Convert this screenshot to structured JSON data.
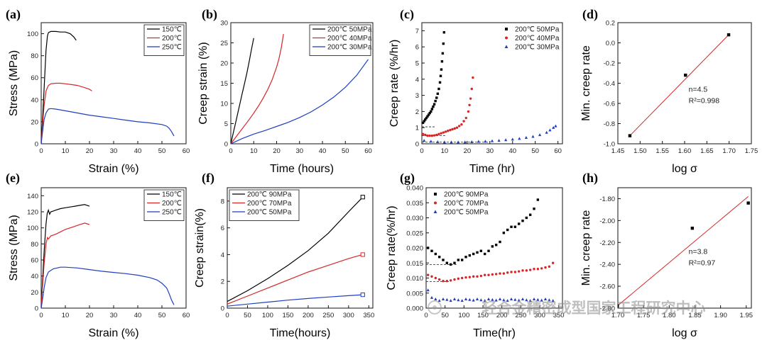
{
  "watermark": "轻合金精密成型国家工程研究中心",
  "chart_data": [
    {
      "id": "a",
      "panel_label": "(a)",
      "type": "line",
      "xlabel": "Strain (%)",
      "ylabel": "Stress (MPa)",
      "xlim": [
        0,
        60
      ],
      "ylim": [
        0,
        110
      ],
      "xticks": [
        0,
        10,
        20,
        30,
        40,
        50,
        60
      ],
      "yticks": [
        0,
        20,
        40,
        60,
        80,
        100
      ],
      "legend_position": "top-right",
      "series": [
        {
          "name": "150℃",
          "color": "#000000",
          "x": [
            0,
            0.5,
            1.2,
            2,
            2.6,
            3,
            4,
            6,
            8,
            10,
            12,
            13.5,
            14.5
          ],
          "y": [
            0,
            20,
            50,
            85,
            98,
            101,
            102,
            102,
            101.5,
            101.5,
            100,
            97,
            94
          ]
        },
        {
          "name": "200℃",
          "color": "#d62728",
          "x": [
            0,
            0.5,
            1.2,
            2,
            3,
            4,
            6,
            8,
            10,
            12,
            15,
            18,
            20,
            21
          ],
          "y": [
            0,
            15,
            35,
            48,
            53,
            54.5,
            55,
            55,
            54.5,
            54,
            53,
            51,
            49.5,
            48
          ]
        },
        {
          "name": "250℃",
          "color": "#1f3fbf",
          "x": [
            0,
            0.5,
            1.2,
            2,
            3,
            4,
            6,
            10,
            15,
            20,
            25,
            30,
            35,
            40,
            45,
            50,
            52,
            53,
            54,
            55
          ],
          "y": [
            0,
            10,
            22,
            28,
            31.5,
            32,
            31.5,
            30,
            28,
            26,
            24.5,
            23,
            21.5,
            20,
            19,
            17.5,
            16,
            14,
            11,
            7
          ]
        }
      ]
    },
    {
      "id": "b",
      "panel_label": "(b)",
      "type": "line",
      "xlabel": "Time (hours)",
      "ylabel": "Creep strain (%)",
      "xlim": [
        0,
        62
      ],
      "ylim": [
        0,
        30
      ],
      "xticks": [
        0,
        10,
        20,
        30,
        40,
        50,
        60
      ],
      "yticks": [
        0,
        5,
        10,
        15,
        20,
        25,
        30
      ],
      "legend_position": "top-right",
      "series": [
        {
          "name": "200℃ 50MPa",
          "color": "#000000",
          "x": [
            0,
            1,
            2,
            3,
            4,
            5,
            6,
            7,
            8,
            9,
            10
          ],
          "y": [
            0,
            2.5,
            5,
            7.5,
            10,
            12.5,
            15,
            17.5,
            20.3,
            23.3,
            26.2
          ]
        },
        {
          "name": "200℃ 40MPa",
          "color": "#d62728",
          "x": [
            0,
            2,
            4,
            6,
            8,
            10,
            12,
            14,
            16,
            18,
            20,
            21,
            22,
            23
          ],
          "y": [
            0,
            1.5,
            3,
            4.5,
            6,
            7.6,
            9.3,
            11.2,
            13.3,
            15.8,
            19,
            21,
            23.7,
            27.2
          ]
        },
        {
          "name": "200℃ 30MPa",
          "color": "#1f3fbf",
          "x": [
            0,
            5,
            10,
            15,
            20,
            25,
            30,
            35,
            40,
            45,
            50,
            55,
            60
          ],
          "y": [
            0,
            1.3,
            2.4,
            3.3,
            4.3,
            5.3,
            6.5,
            7.9,
            9.6,
            11.6,
            14,
            17,
            20.9
          ]
        }
      ]
    },
    {
      "id": "c",
      "panel_label": "(c)",
      "type": "scatter",
      "xlabel": "Time (hr)",
      "ylabel": "Creep rate (%/hr)",
      "xlim": [
        0,
        62
      ],
      "ylim": [
        0,
        7.5
      ],
      "xticks": [
        0,
        10,
        20,
        30,
        40,
        50,
        60
      ],
      "yticks": [
        0,
        1,
        2,
        3,
        4,
        5,
        6,
        7
      ],
      "legend_position": "top-right",
      "reference_lines": [
        {
          "x": [
            0,
            6
          ],
          "y": [
            1.05,
            1.05
          ]
        },
        {
          "x": [
            0,
            11
          ],
          "y": [
            0.5,
            0.5
          ]
        },
        {
          "x": [
            0,
            30
          ],
          "y": [
            0.1,
            0.1
          ]
        }
      ],
      "series": [
        {
          "name": "200℃ 50MPa",
          "color": "#000000",
          "marker": "square",
          "x": [
            0.5,
            1,
            1.5,
            2,
            2.5,
            3,
            3.5,
            4,
            4.5,
            5,
            5.5,
            6,
            6.5,
            7,
            7.5,
            8,
            8.3,
            8.6,
            8.9,
            9.2,
            9.5,
            9.8
          ],
          "y": [
            1.3,
            1.4,
            1.5,
            1.6,
            1.7,
            1.8,
            1.9,
            2,
            2.15,
            2.3,
            2.45,
            2.65,
            2.85,
            3.1,
            3.4,
            3.8,
            4.2,
            4.6,
            5.1,
            5.6,
            6.2,
            6.9
          ]
        },
        {
          "name": "200℃ 40MPa",
          "color": "#d62728",
          "marker": "circle",
          "x": [
            0.5,
            1.5,
            2.5,
            3.5,
            4.5,
            5.5,
            6.5,
            7.5,
            8.5,
            9.5,
            10.5,
            11.5,
            12.5,
            13.5,
            14.5,
            15.5,
            16.5,
            17.5,
            18.5,
            19.5,
            20.5,
            21,
            21.5,
            22,
            22.5
          ],
          "y": [
            0.6,
            0.55,
            0.5,
            0.5,
            0.5,
            0.52,
            0.55,
            0.6,
            0.65,
            0.7,
            0.75,
            0.8,
            0.85,
            0.9,
            0.95,
            1.0,
            1.1,
            1.2,
            1.4,
            1.6,
            2.0,
            2.4,
            2.8,
            3.4,
            4.1
          ]
        },
        {
          "name": "200℃ 30MPa",
          "color": "#1f3fbf",
          "marker": "triangle",
          "x": [
            1,
            4,
            7,
            10,
            13,
            16,
            19,
            22,
            25,
            28,
            31,
            34,
            37,
            40,
            43,
            46,
            49,
            52,
            55,
            56.5,
            58,
            59
          ],
          "y": [
            0.2,
            0.15,
            0.12,
            0.1,
            0.1,
            0.1,
            0.1,
            0.12,
            0.14,
            0.15,
            0.18,
            0.2,
            0.24,
            0.28,
            0.32,
            0.38,
            0.45,
            0.55,
            0.7,
            0.85,
            1.0,
            1.1
          ]
        }
      ]
    },
    {
      "id": "d",
      "panel_label": "(d)",
      "type": "scatter",
      "xlabel": "log σ",
      "ylabel": "Min. creep rate",
      "xlim": [
        1.45,
        1.75
      ],
      "ylim": [
        -1.0,
        0.2
      ],
      "xticks": [
        1.45,
        1.5,
        1.55,
        1.6,
        1.65,
        1.7,
        1.75
      ],
      "yticks": [
        -1.0,
        -0.8,
        -0.6,
        -0.4,
        -0.2,
        0.0,
        0.2
      ],
      "annotations": [
        "n=4.5",
        "R²=0.998"
      ],
      "fit_line": {
        "x": [
          1.477,
          1.699
        ],
        "y": [
          -0.92,
          0.08
        ]
      },
      "series": [
        {
          "marker": "square",
          "color": "#000000",
          "x": [
            1.477,
            1.602,
            1.699
          ],
          "y": [
            -0.92,
            -0.32,
            0.08
          ]
        }
      ]
    },
    {
      "id": "e",
      "panel_label": "(e)",
      "type": "line",
      "xlabel": "Strain (%)",
      "ylabel": "Stress (MPa)",
      "xlim": [
        0,
        60
      ],
      "ylim": [
        0,
        150
      ],
      "xticks": [
        0,
        10,
        20,
        30,
        40,
        50,
        60
      ],
      "yticks": [
        0,
        20,
        40,
        60,
        80,
        100,
        120,
        140
      ],
      "legend_position": "top-right",
      "series": [
        {
          "name": "150℃",
          "color": "#000000",
          "x": [
            0,
            0.5,
            1.2,
            2,
            2.5,
            3,
            3.5,
            4,
            5,
            6,
            8,
            10,
            12,
            14,
            16,
            18,
            19,
            20
          ],
          "y": [
            0,
            30,
            70,
            105,
            118,
            122,
            117,
            120,
            121,
            122,
            124,
            125,
            126,
            127,
            128,
            129,
            128,
            127
          ]
        },
        {
          "name": "200℃",
          "color": "#d62728",
          "x": [
            0,
            0.5,
            1.2,
            2,
            2.6,
            3,
            4,
            6,
            8,
            10,
            12,
            14,
            16,
            18,
            19,
            20
          ],
          "y": [
            0,
            25,
            55,
            80,
            88,
            86,
            90,
            92,
            95,
            98,
            100,
            102,
            104,
            106,
            105,
            104
          ]
        },
        {
          "name": "250℃",
          "color": "#1f3fbf",
          "x": [
            0,
            0.5,
            1.2,
            2,
            3,
            5,
            8,
            10,
            15,
            20,
            25,
            30,
            35,
            40,
            45,
            48,
            50,
            52,
            53,
            54,
            55
          ],
          "y": [
            0,
            10,
            25,
            38,
            45,
            49,
            51,
            51,
            50,
            48,
            46,
            44.5,
            43,
            41,
            38,
            35,
            31,
            25,
            18,
            10,
            4
          ]
        }
      ]
    },
    {
      "id": "f",
      "panel_label": "(f)",
      "type": "line",
      "xlabel": "Time(hours)",
      "ylabel": "Creep strain(%)",
      "xlim": [
        0,
        360
      ],
      "ylim": [
        0,
        9
      ],
      "xticks": [
        0,
        50,
        100,
        150,
        200,
        250,
        300,
        350
      ],
      "yticks": [
        0,
        2,
        4,
        6,
        8
      ],
      "legend_position": "top-left",
      "series": [
        {
          "name": "200℃ 90MPa",
          "color": "#000000",
          "end_marker": "square",
          "x": [
            0,
            50,
            100,
            150,
            200,
            250,
            300,
            335
          ],
          "y": [
            0.5,
            1.3,
            2.2,
            3.2,
            4.3,
            5.6,
            7.2,
            8.3
          ]
        },
        {
          "name": "200℃ 70MPa",
          "color": "#d62728",
          "end_marker": "square",
          "x": [
            0,
            50,
            100,
            150,
            200,
            250,
            300,
            335
          ],
          "y": [
            0.3,
            0.9,
            1.5,
            2.1,
            2.7,
            3.2,
            3.7,
            4.0
          ]
        },
        {
          "name": "200℃ 50MPa",
          "color": "#1f3fbf",
          "end_marker": "square",
          "x": [
            0,
            50,
            100,
            150,
            200,
            250,
            300,
            335
          ],
          "y": [
            0.15,
            0.3,
            0.45,
            0.6,
            0.72,
            0.83,
            0.93,
            1.0
          ]
        }
      ]
    },
    {
      "id": "g",
      "panel_label": "(g)",
      "type": "scatter",
      "xlabel": "Time(hr)",
      "ylabel": "Creep rate(%/hr)",
      "xlim": [
        0,
        360
      ],
      "ylim": [
        0,
        0.04
      ],
      "xticks": [
        0,
        50,
        100,
        150,
        200,
        250,
        300,
        350
      ],
      "yticks": [
        0.0,
        0.005,
        0.01,
        0.015,
        0.02,
        0.025,
        0.03,
        0.035,
        0.04
      ],
      "legend_position": "top-left",
      "reference_lines": [
        {
          "x": [
            0,
            80
          ],
          "y": [
            0.0145,
            0.0145
          ]
        },
        {
          "x": [
            0,
            60
          ],
          "y": [
            0.0088,
            0.0088
          ]
        }
      ],
      "series": [
        {
          "name": "200℃ 90MPa",
          "color": "#000000",
          "marker": "square",
          "x": [
            5,
            15,
            25,
            35,
            45,
            55,
            65,
            75,
            85,
            95,
            105,
            115,
            125,
            135,
            145,
            155,
            165,
            175,
            185,
            195,
            205,
            215,
            225,
            235,
            245,
            255,
            265,
            275,
            285,
            295
          ],
          "y": [
            0.02,
            0.019,
            0.018,
            0.017,
            0.016,
            0.015,
            0.0145,
            0.015,
            0.016,
            0.016,
            0.017,
            0.0175,
            0.018,
            0.0185,
            0.019,
            0.018,
            0.019,
            0.0205,
            0.021,
            0.022,
            0.025,
            0.026,
            0.027,
            0.027,
            0.028,
            0.029,
            0.03,
            0.031,
            0.033,
            0.036
          ]
        },
        {
          "name": "200℃ 70MPa",
          "color": "#d62728",
          "marker": "circle",
          "x": [
            5,
            15,
            25,
            35,
            45,
            55,
            65,
            75,
            85,
            95,
            105,
            115,
            125,
            135,
            145,
            155,
            165,
            175,
            185,
            195,
            205,
            215,
            225,
            235,
            245,
            255,
            265,
            275,
            285,
            295,
            305,
            315,
            325,
            335
          ],
          "y": [
            0.011,
            0.0105,
            0.01,
            0.0095,
            0.009,
            0.009,
            0.0092,
            0.0095,
            0.0098,
            0.01,
            0.0102,
            0.0103,
            0.0105,
            0.0105,
            0.0107,
            0.011,
            0.011,
            0.0112,
            0.0113,
            0.0115,
            0.0115,
            0.0118,
            0.012,
            0.012,
            0.0122,
            0.0125,
            0.0125,
            0.0127,
            0.013,
            0.013,
            0.0132,
            0.0135,
            0.0138,
            0.015
          ]
        },
        {
          "name": "200℃ 50MPa",
          "color": "#1f3fbf",
          "marker": "triangle",
          "x": [
            5,
            15,
            25,
            35,
            45,
            55,
            65,
            75,
            85,
            95,
            105,
            115,
            125,
            135,
            145,
            155,
            165,
            175,
            185,
            195,
            205,
            215,
            225,
            235,
            245,
            255,
            265,
            275,
            285,
            295,
            305,
            315,
            325,
            335
          ],
          "y": [
            0.006,
            0.0035,
            0.003,
            0.0025,
            0.003,
            0.0028,
            0.0025,
            0.003,
            0.0027,
            0.0025,
            0.003,
            0.0028,
            0.0026,
            0.003,
            0.0027,
            0.0025,
            0.003,
            0.0028,
            0.0026,
            0.003,
            0.0027,
            0.0025,
            0.003,
            0.0028,
            0.0026,
            0.003,
            0.0027,
            0.0025,
            0.003,
            0.0028,
            0.0026,
            0.003,
            0.0027,
            0.0025
          ]
        }
      ]
    },
    {
      "id": "h",
      "panel_label": "(h)",
      "type": "scatter",
      "xlabel": "log σ",
      "ylabel": "Min. creep rate",
      "xlim": [
        1.7,
        1.96
      ],
      "ylim": [
        -2.8,
        -1.7
      ],
      "xticks": [
        1.7,
        1.75,
        1.8,
        1.85,
        1.9,
        1.95
      ],
      "yticks": [
        -2.8,
        -2.6,
        -2.4,
        -2.2,
        -2.0,
        -1.8
      ],
      "annotations": [
        "n=3.8",
        "R²=0.97"
      ],
      "fit_line": {
        "x": [
          1.699,
          1.954
        ],
        "y": [
          -2.78,
          -1.78
        ]
      },
      "series": [
        {
          "marker": "square",
          "color": "#000000",
          "x": [
            1.699,
            1.845,
            1.954
          ],
          "y": [
            -2.78,
            -2.07,
            -1.84
          ]
        }
      ]
    }
  ]
}
